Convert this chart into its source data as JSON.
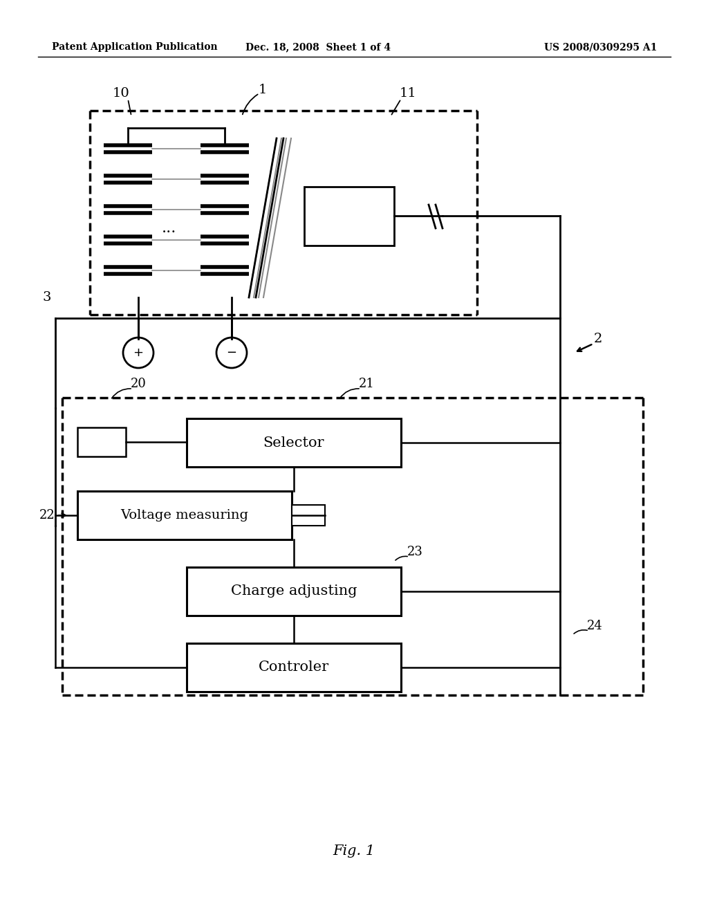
{
  "bg_color": "#ffffff",
  "header_left": "Patent Application Publication",
  "header_mid": "Dec. 18, 2008  Sheet 1 of 4",
  "header_right": "US 2008/0309295 A1",
  "caption": "Fig. 1",
  "label_1": "1",
  "label_2": "2",
  "label_3": "3",
  "label_10": "10",
  "label_11": "11",
  "label_20": "20",
  "label_21": "21",
  "label_22": "22",
  "label_23": "23",
  "label_24": "24",
  "box_selector": "Selector",
  "box_voltage": "Voltage measuring",
  "box_charge": "Charge adjusting",
  "box_controller": "Controler"
}
